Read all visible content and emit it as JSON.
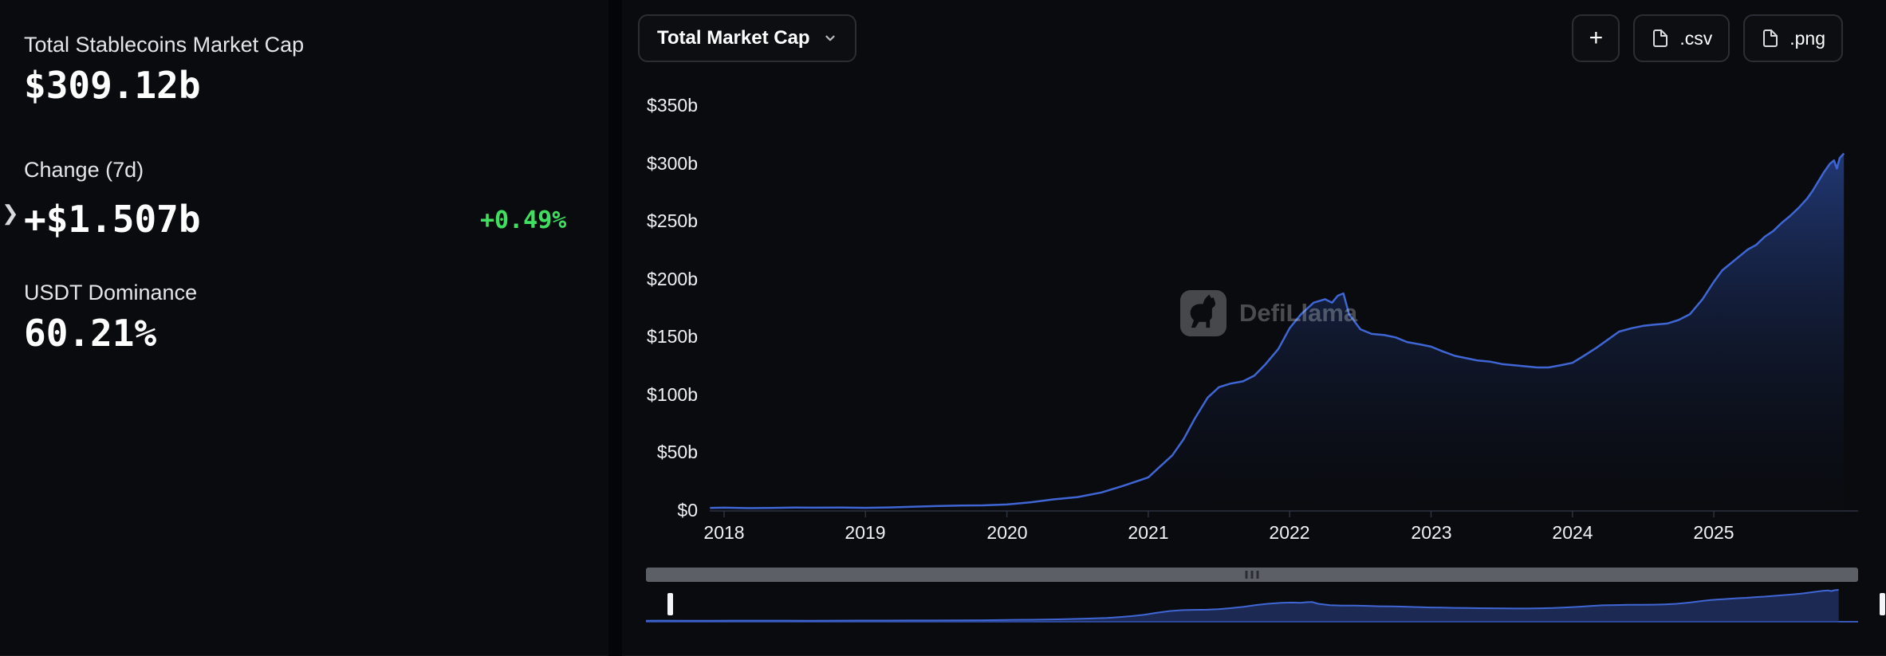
{
  "theme": {
    "accent_green": "#3fe05f",
    "chart_line_color": "#3f66d4",
    "chart_fill_color": "#2b4ba0",
    "card_bg": "#0a0b0e"
  },
  "stats": {
    "market_cap_label": "Total Stablecoins Market Cap",
    "market_cap_value": "$309.12b",
    "change_label": "Change (7d)",
    "change_value": "+$1.507b",
    "change_percent": "+0.49%",
    "dominance_label": "USDT Dominance",
    "dominance_value": "60.21%",
    "collapse_chevron": "❯"
  },
  "toolbar": {
    "metric_selector": "Total Market Cap",
    "add_button": "+",
    "csv_button": ".csv",
    "png_button": ".png"
  },
  "watermark": {
    "brand": "DefiLlama"
  },
  "chart_data": {
    "type": "area",
    "title": "Total Market Cap",
    "xlabel": "",
    "ylabel": "",
    "ylim": [
      0,
      350
    ],
    "grid": false,
    "legend": false,
    "ytick_labels": [
      "$0",
      "$50b",
      "$100b",
      "$150b",
      "$200b",
      "$250b",
      "$300b",
      "$350b"
    ],
    "xtick_labels": [
      "2018",
      "2019",
      "2020",
      "2021",
      "2022",
      "2023",
      "2024",
      "2025"
    ],
    "units": "USD billions",
    "x": [
      2017.9,
      2018.0,
      2018.17,
      2018.33,
      2018.5,
      2018.67,
      2018.83,
      2019.0,
      2019.17,
      2019.33,
      2019.5,
      2019.67,
      2019.83,
      2020.0,
      2020.17,
      2020.33,
      2020.5,
      2020.67,
      2020.83,
      2021.0,
      2021.08,
      2021.17,
      2021.25,
      2021.33,
      2021.42,
      2021.5,
      2021.58,
      2021.67,
      2021.75,
      2021.83,
      2021.92,
      2022.0,
      2022.08,
      2022.17,
      2022.25,
      2022.3,
      2022.34,
      2022.38,
      2022.42,
      2022.5,
      2022.58,
      2022.67,
      2022.75,
      2022.83,
      2022.92,
      2023.0,
      2023.08,
      2023.17,
      2023.25,
      2023.33,
      2023.42,
      2023.5,
      2023.58,
      2023.67,
      2023.75,
      2023.83,
      2023.92,
      2024.0,
      2024.08,
      2024.17,
      2024.25,
      2024.33,
      2024.42,
      2024.5,
      2024.58,
      2024.67,
      2024.75,
      2024.83,
      2024.92,
      2025.0,
      2025.06,
      2025.12,
      2025.18,
      2025.24,
      2025.3,
      2025.36,
      2025.42,
      2025.48,
      2025.54,
      2025.6,
      2025.66,
      2025.7,
      2025.74,
      2025.78,
      2025.82,
      2025.85,
      2025.87,
      2025.89,
      2025.92
    ],
    "values": [
      2.6,
      2.8,
      2.4,
      2.6,
      2.9,
      2.8,
      2.9,
      2.7,
      3.0,
      3.6,
      4.2,
      4.6,
      4.8,
      5.6,
      7.5,
      10,
      12,
      16,
      22,
      29,
      38,
      48,
      62,
      80,
      98,
      107,
      110,
      112,
      117,
      127,
      140,
      158,
      170,
      180,
      183,
      180,
      186,
      188,
      170,
      157,
      153,
      152,
      150,
      146,
      144,
      142,
      138,
      134,
      132,
      130,
      129,
      127,
      126,
      125,
      124,
      124,
      126,
      128,
      134,
      141,
      148,
      155,
      158,
      160,
      161,
      162,
      165,
      170,
      183,
      198,
      208,
      214,
      220,
      226,
      230,
      237,
      242,
      249,
      255,
      262,
      270,
      277,
      285,
      293,
      300,
      303,
      296,
      305,
      309
    ]
  }
}
